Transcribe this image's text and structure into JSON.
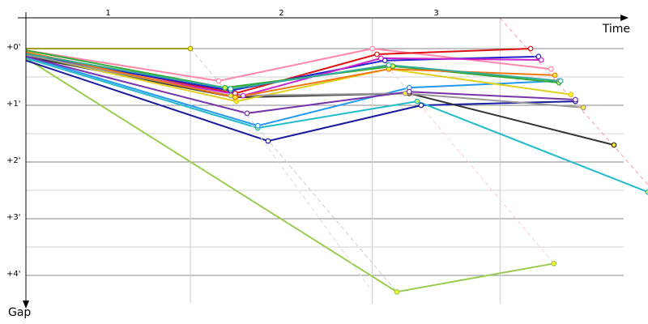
{
  "chart_data": {
    "type": "line",
    "x_label": "Time",
    "y_label": "Gap",
    "xlim": [
      0,
      10.97
    ],
    "ylim": [
      -0.5,
      4.5
    ],
    "yticks": [
      {
        "value": 0,
        "label": "+0'"
      },
      {
        "value": 1,
        "label": "+1'"
      },
      {
        "value": 2,
        "label": "+2'"
      },
      {
        "value": 3,
        "label": "+3'"
      },
      {
        "value": 4,
        "label": "+4'"
      }
    ],
    "minor_yticks": [
      0.5,
      1.5,
      2.5,
      3.5
    ],
    "grid": true,
    "laps": [
      1,
      2,
      3
    ],
    "lap_ends": [
      2.9,
      6.11,
      8.36
    ],
    "series": [
      {
        "color": "#a0a020",
        "marker_fill": "#ffee33",
        "x": [
          0,
          2.9
        ],
        "values": [
          0,
          0
        ]
      },
      {
        "color": "#9acd50",
        "marker_fill": "#ffee33",
        "x": [
          0,
          6.54,
          9.31
        ],
        "values": [
          0.17,
          4.29,
          3.79
        ]
      },
      {
        "color": "#ff88aa",
        "marker_fill": "#ffffff",
        "x": [
          0,
          3.4,
          6.11,
          9.26
        ],
        "values": [
          0.03,
          0.57,
          0,
          0.36
        ]
      },
      {
        "color": "#dd1111",
        "marker_fill": "#ffffff",
        "x": [
          0,
          3.69,
          6.19,
          8.9
        ],
        "values": [
          0.07,
          0.79,
          0.1,
          0
        ]
      },
      {
        "color": "#2222cc",
        "marker_fill": "#ffffff",
        "x": [
          0,
          3.61,
          6.33,
          9.04
        ],
        "values": [
          0.11,
          0.74,
          0.21,
          0.14
        ]
      },
      {
        "color": "#cc22cc",
        "marker_fill": "#ffffff",
        "x": [
          0,
          3.83,
          6.26,
          9.09
        ],
        "values": [
          0.14,
          0.83,
          0.17,
          0.2
        ]
      },
      {
        "color": "#1a1aa0",
        "marker_fill": "#ffffff",
        "x": [
          0,
          4.27,
          6.97,
          9.69
        ],
        "values": [
          0.21,
          1.63,
          1,
          0.93
        ]
      },
      {
        "color": "#22bbcc",
        "marker_fill": "#ccff66",
        "x": [
          0,
          4.09,
          6.9,
          10.97
        ],
        "values": [
          0.17,
          1.4,
          0.93,
          2.53
        ]
      },
      {
        "color": "#2299ee",
        "marker_fill": "#ffffff",
        "x": [
          0,
          4.09,
          6.76,
          9.4
        ],
        "values": [
          0.14,
          1.36,
          0.69,
          0.57
        ]
      },
      {
        "color": "#333333",
        "marker_fill": "#ffee33",
        "x": [
          0,
          3.69,
          6.76,
          10.37
        ],
        "values": [
          0.14,
          0.86,
          0.79,
          1.7
        ]
      },
      {
        "color": "#e0d020",
        "marker_fill": "#ffee33",
        "x": [
          0,
          3.71,
          6.4,
          9.61
        ],
        "values": [
          0.1,
          0.93,
          0.36,
          0.81
        ]
      },
      {
        "color": "#33aa33",
        "marker_fill": "#ccff66",
        "x": [
          0,
          3.51,
          6.47,
          9.4
        ],
        "values": [
          0.03,
          0.69,
          0.31,
          0.6
        ]
      },
      {
        "color": "#999999",
        "marker_fill": "#ffee33",
        "x": [
          0,
          3.61,
          6.69,
          9.83
        ],
        "values": [
          0.11,
          0.83,
          0.79,
          1.04
        ]
      },
      {
        "color": "#ee7711",
        "marker_fill": "#ffee33",
        "x": [
          0,
          3.69,
          6.4,
          9.33
        ],
        "values": [
          0.06,
          0.86,
          0.36,
          0.47
        ]
      },
      {
        "color": "#7733aa",
        "marker_fill": "#ffffff",
        "x": [
          0,
          3.9,
          6.76,
          9.69
        ],
        "values": [
          0.14,
          1.14,
          0.76,
          0.9
        ]
      },
      {
        "color": "#33aa99",
        "marker_fill": "#ffffff",
        "x": [
          0,
          3.61,
          6.4,
          9.43
        ],
        "values": [
          0.09,
          0.71,
          0.29,
          0.57
        ]
      },
      {
        "color": "#cccccc",
        "dashed": true,
        "x": [
          2.9,
          6.54
        ],
        "values": [
          0,
          4.29
        ]
      },
      {
        "color": "#dddddd",
        "dashed": true,
        "x": [
          3.83,
          6.11
        ],
        "values": [
          1.14,
          4.29
        ]
      },
      {
        "color": "#ffcccc",
        "dashed": true,
        "x": [
          6.11,
          9.31
        ],
        "values": [
          0,
          3.79
        ]
      },
      {
        "color": "#ff9999",
        "dashed": true,
        "x": [
          8.36,
          10.97
        ],
        "values": [
          -0.54,
          2.4
        ]
      }
    ]
  }
}
